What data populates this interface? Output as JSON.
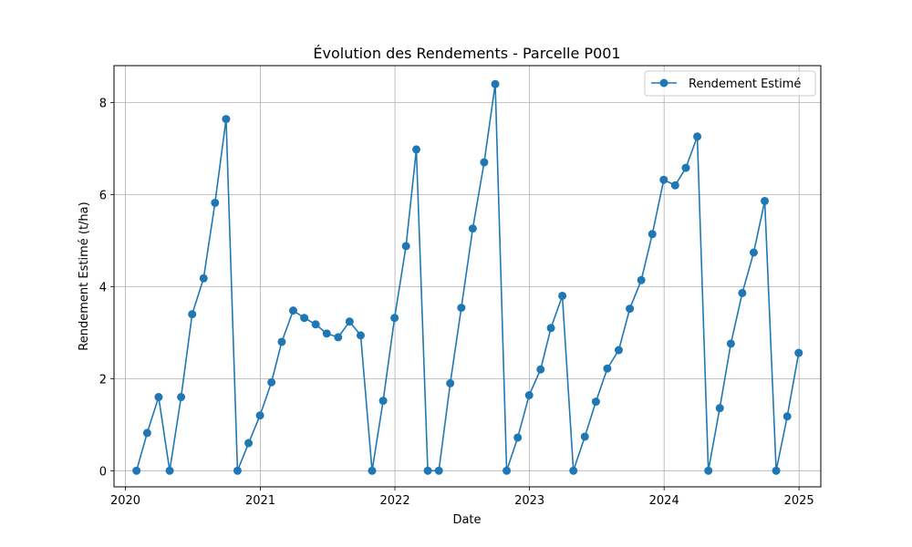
{
  "chart_data": {
    "type": "line",
    "title": "Évolution des Rendements - Parcelle P001",
    "xlabel": "Date",
    "ylabel": "Rendement Estimé (t/ha)",
    "xlim": [
      "2019-12-01",
      "2025-03-01"
    ],
    "ylim": [
      -0.35,
      8.8
    ],
    "x_ticks": [
      "2020",
      "2021",
      "2022",
      "2023",
      "2024",
      "2025"
    ],
    "y_ticks": [
      0,
      2,
      4,
      6,
      8
    ],
    "grid": true,
    "legend_position": "top-right",
    "series": [
      {
        "name": "Rendement Estimé",
        "color": "#1f77b4",
        "marker": "circle",
        "x": [
          "2020-01-31",
          "2020-02-29",
          "2020-03-31",
          "2020-04-30",
          "2020-05-31",
          "2020-06-30",
          "2020-07-31",
          "2020-08-31",
          "2020-09-30",
          "2020-10-31",
          "2020-11-30",
          "2020-12-31",
          "2021-01-31",
          "2021-02-28",
          "2021-03-31",
          "2021-04-30",
          "2021-05-31",
          "2021-06-30",
          "2021-07-31",
          "2021-08-31",
          "2021-09-30",
          "2021-10-31",
          "2021-11-30",
          "2021-12-31",
          "2022-01-31",
          "2022-02-28",
          "2022-03-31",
          "2022-04-30",
          "2022-05-31",
          "2022-06-30",
          "2022-07-31",
          "2022-08-31",
          "2022-09-30",
          "2022-10-31",
          "2022-11-30",
          "2022-12-31",
          "2023-01-31",
          "2023-02-28",
          "2023-03-31",
          "2023-04-30",
          "2023-05-31",
          "2023-06-30",
          "2023-07-31",
          "2023-08-31",
          "2023-09-30",
          "2023-10-31",
          "2023-11-30",
          "2023-12-31",
          "2024-01-31",
          "2024-02-29",
          "2024-03-31",
          "2024-04-30",
          "2024-05-31",
          "2024-06-30",
          "2024-07-31",
          "2024-08-31",
          "2024-09-30",
          "2024-10-31",
          "2024-11-30",
          "2024-12-31"
        ],
        "y": [
          0.0,
          0.82,
          1.6,
          0.0,
          1.6,
          3.4,
          4.18,
          5.82,
          7.64,
          0.0,
          0.6,
          1.2,
          1.92,
          2.8,
          3.48,
          3.32,
          3.18,
          2.98,
          2.9,
          3.24,
          2.94,
          0.0,
          1.52,
          3.32,
          4.88,
          6.98,
          0.0,
          0.0,
          1.9,
          3.54,
          5.26,
          6.7,
          8.4,
          0.0,
          0.72,
          1.64,
          2.2,
          3.1,
          3.8,
          0.0,
          0.74,
          1.5,
          2.22,
          2.62,
          3.52,
          4.14,
          5.14,
          6.32,
          6.2,
          6.58,
          7.26,
          0.0,
          1.36,
          2.76,
          3.86,
          4.74,
          5.86,
          0.0,
          1.18,
          2.56
        ]
      }
    ]
  }
}
